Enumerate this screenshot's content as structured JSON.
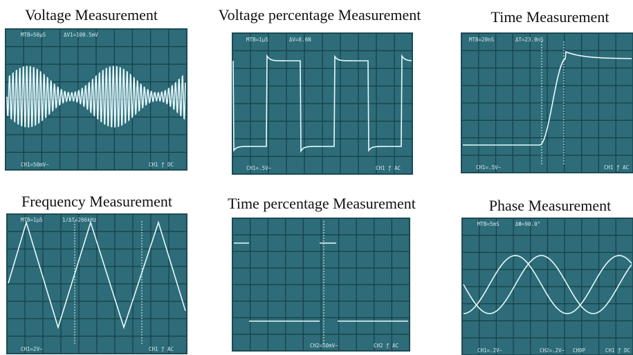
{
  "panels": [
    {
      "title": "Voltage Measurement",
      "readouts": [
        "MTB=50μS",
        "ΔV1=100.5mV",
        "CH1=50mV~",
        "CH1 ƒ DC"
      ]
    },
    {
      "title": "Voltage percentage Measurement",
      "readouts": [
        "MTB=1μS",
        "ΔV=8.6N",
        "CH1=.5V~",
        "CH1 ƒ AC"
      ]
    },
    {
      "title": "Time Measurement",
      "readouts": [
        "MTB=20nS",
        "ΔT=23.0nS",
        "CH1=.5V~",
        "CH1 ƒ AC"
      ]
    },
    {
      "title": "Frequency Measurement",
      "readouts": [
        "MTB=1μS",
        "1/ΔT=266kHz",
        "CH1=2V~",
        "CH1 ƒ AC"
      ]
    },
    {
      "title": "Time percentage Measurement",
      "readouts": [
        "CH2=50mV~",
        "CH2 ƒ AC"
      ]
    },
    {
      "title": "Phase Measurement",
      "readouts": [
        "MTB=5mS",
        "ΔΦ=90.0°",
        "CH1=.2V~",
        "CH2=.2V~",
        "CHOP",
        "CH1 ƒ DC"
      ]
    }
  ]
}
